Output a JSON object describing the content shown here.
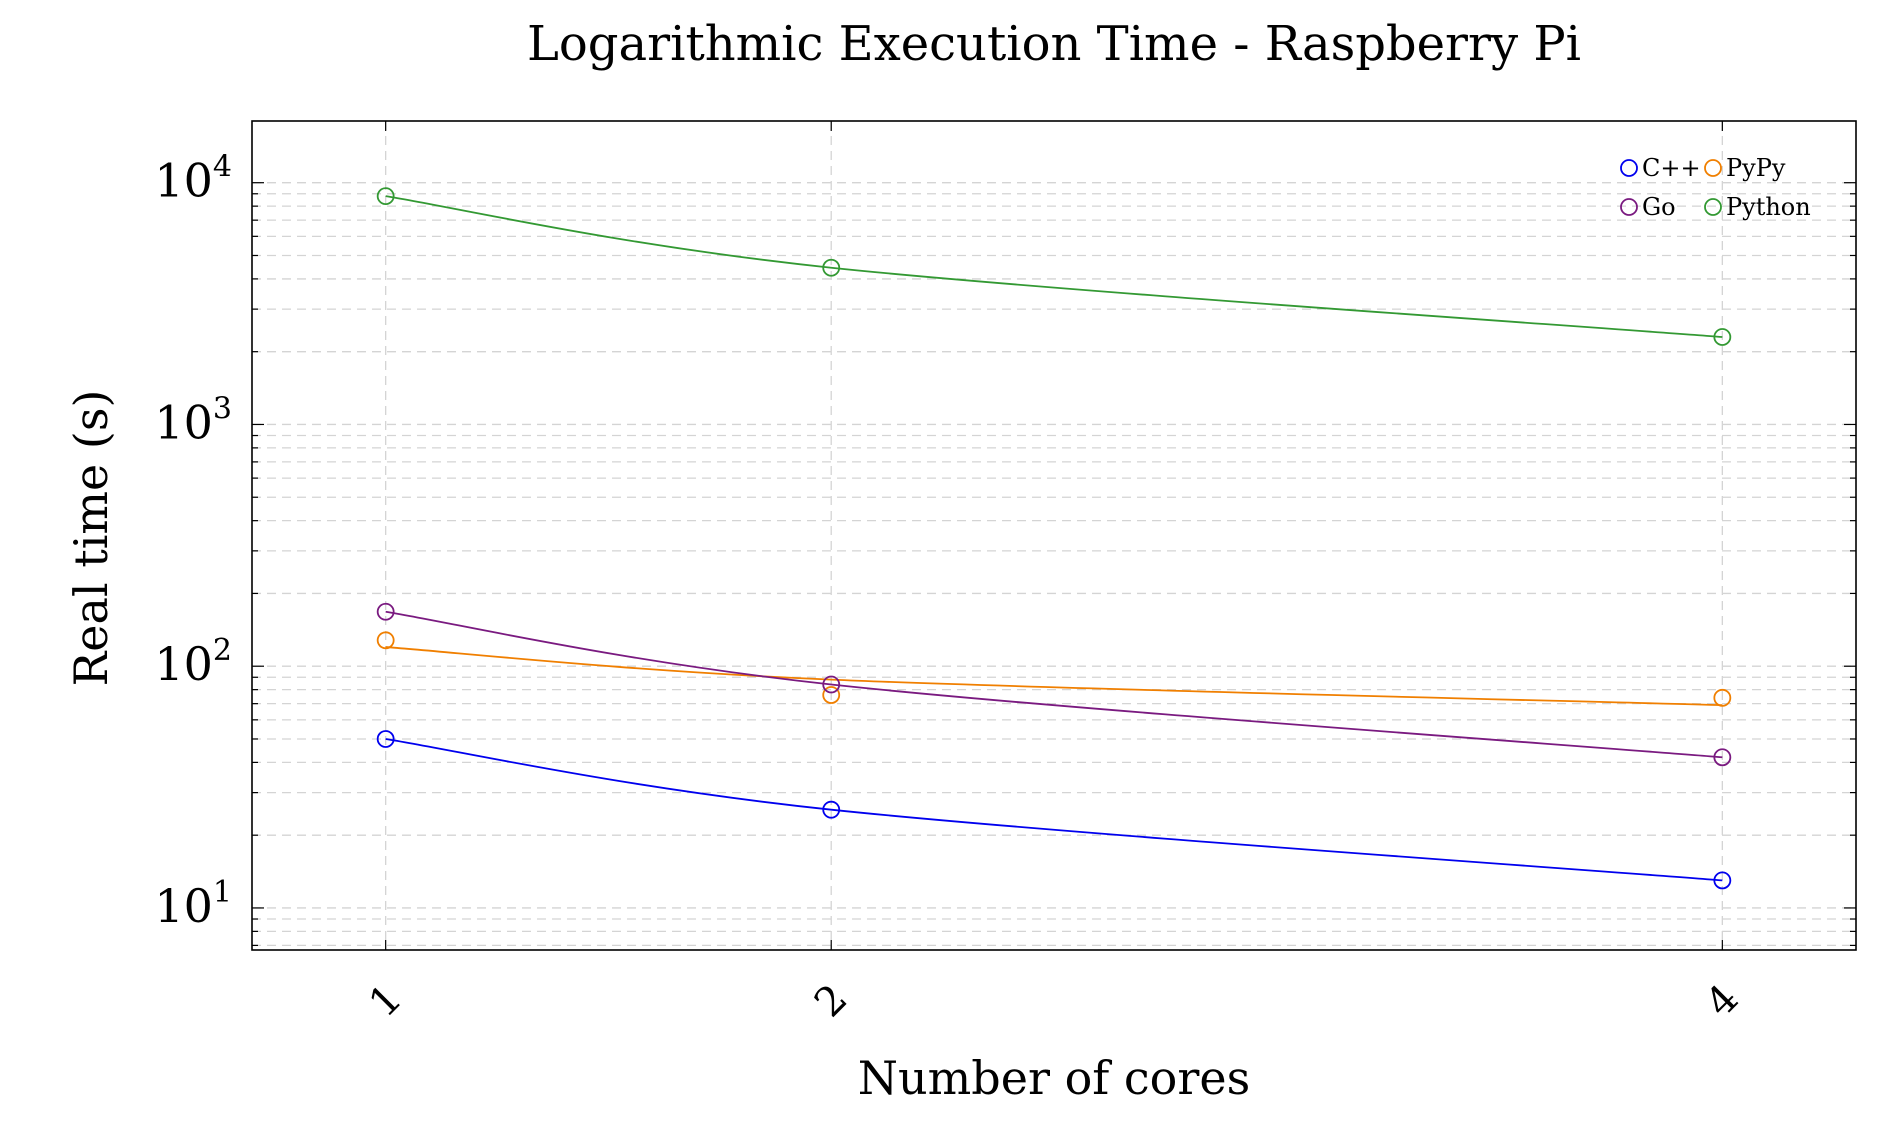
{
  "chart_data": {
    "type": "line",
    "title": "Logarithmic Execution Time - Raspberry Pi",
    "xlabel": "Number of cores",
    "ylabel": "Real time (s)",
    "x": [
      1,
      2,
      4
    ],
    "x_tick_labels": [
      "1",
      "2",
      "4"
    ],
    "y_scale": "log",
    "ylim": [
      6.7,
      18000
    ],
    "y_ticks": [
      {
        "value": 10,
        "base": "10",
        "exp": "1"
      },
      {
        "value": 100,
        "base": "10",
        "exp": "2"
      },
      {
        "value": 1000,
        "base": "10",
        "exp": "3"
      },
      {
        "value": 10000,
        "base": "10",
        "exp": "4"
      }
    ],
    "grid": true,
    "legend_position": "top-right",
    "series": [
      {
        "name": "C++",
        "color": "#0000ee",
        "values": [
          50,
          25.5,
          13
        ],
        "curve": [
          50,
          25.5,
          13
        ]
      },
      {
        "name": "PyPy",
        "color": "#f07f00",
        "values": [
          128,
          76,
          74
        ],
        "curve": [
          120,
          88,
          69
        ]
      },
      {
        "name": "Go",
        "color": "#7a1a80",
        "values": [
          168,
          84,
          42
        ],
        "curve": [
          168,
          84,
          42
        ]
      },
      {
        "name": "Python",
        "color": "#339933",
        "values": [
          8800,
          4450,
          2300
        ],
        "curve": [
          8800,
          4450,
          2300
        ]
      }
    ]
  }
}
